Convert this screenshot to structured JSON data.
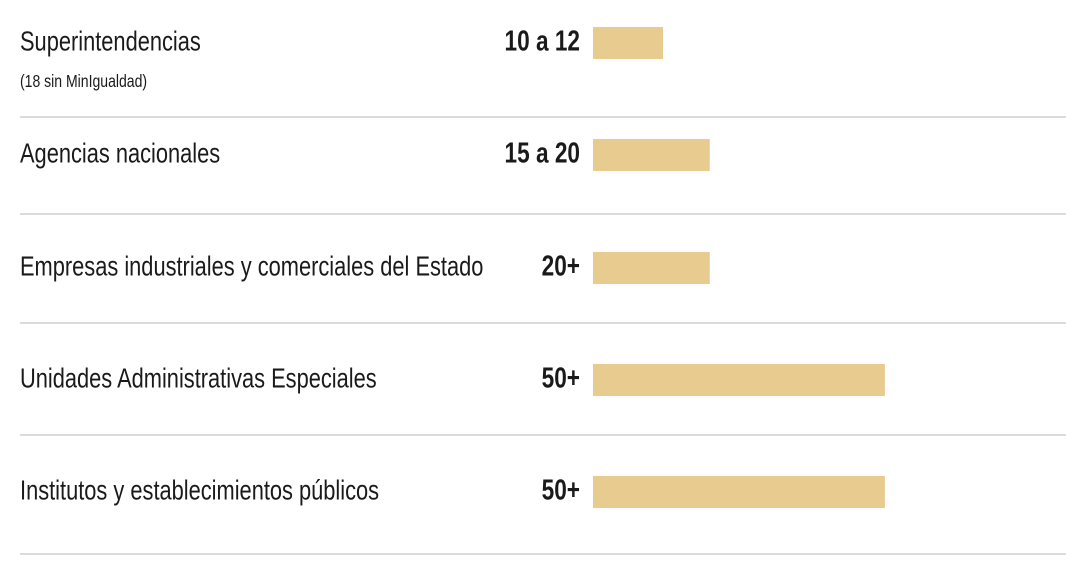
{
  "chart_data": {
    "type": "bar",
    "orientation": "horizontal",
    "categories": [
      "Superintendencias",
      "Agencias nacionales",
      "Empresas industriales y comerciales del Estado",
      "Unidades Administrativas Especiales",
      "Institutos y establecimientos públicos"
    ],
    "category_notes": [
      "(18 sin MinIgualdad)",
      null,
      null,
      null,
      null
    ],
    "values": [
      12,
      20,
      20,
      50,
      50
    ],
    "value_labels": [
      "10 a 12",
      "15 a 20",
      "20+",
      "50+",
      "50+"
    ],
    "color": "#e8cb8e",
    "xlim": [
      0,
      80
    ]
  }
}
